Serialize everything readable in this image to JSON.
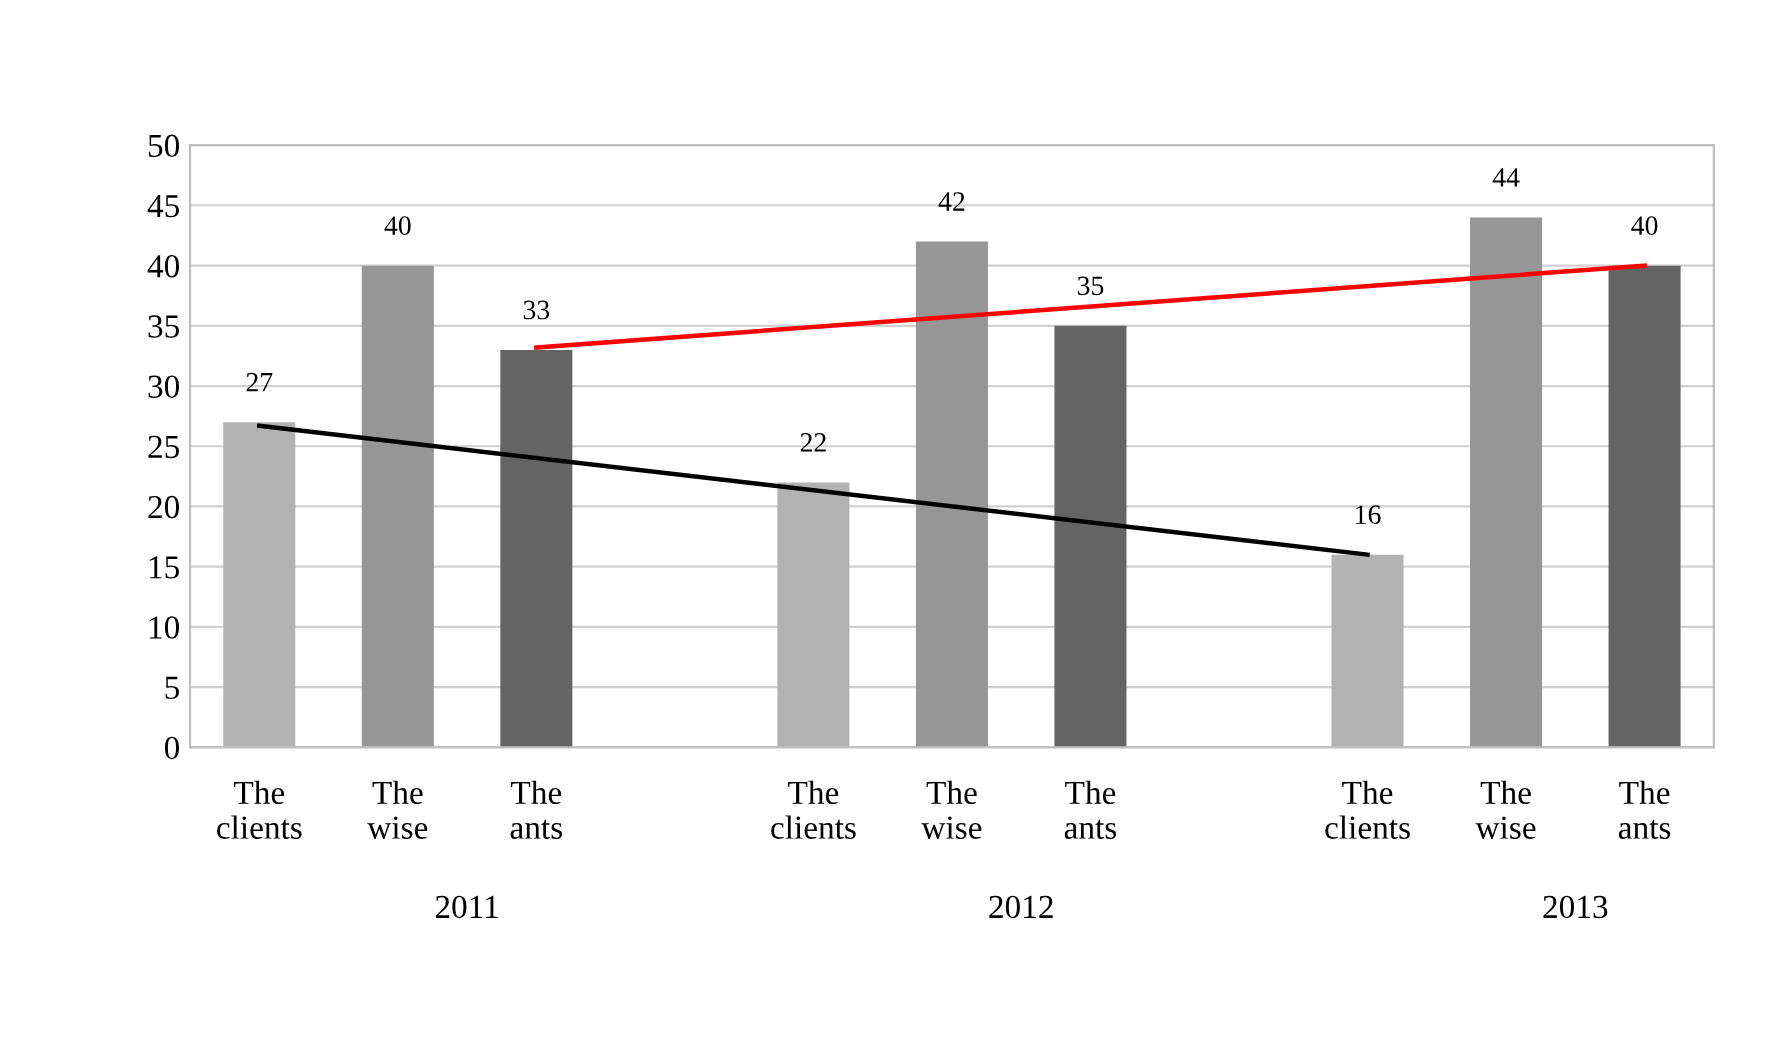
{
  "chart_data": {
    "type": "bar",
    "categories": [
      "The clients",
      "The wise",
      "The ants",
      null,
      "The clients",
      "The wise",
      "The ants",
      null,
      "The clients",
      "The wise",
      "The ants"
    ],
    "values": [
      27,
      40,
      33,
      null,
      22,
      42,
      35,
      null,
      16,
      44,
      40
    ],
    "colors": [
      "#b2b2b2",
      "#969696",
      "#646464",
      null,
      "#b2b2b2",
      "#969696",
      "#646464",
      null,
      "#b2b2b2",
      "#969696",
      "#646464"
    ],
    "value_labels": [
      "27",
      "40",
      "33",
      null,
      "22",
      "42",
      "35",
      null,
      "16",
      "44",
      "40"
    ],
    "series": [
      {
        "type": "line",
        "color": "#000000",
        "values": [
          26.7,
          null,
          null,
          null,
          null,
          null,
          null,
          null,
          16,
          null,
          null
        ]
      },
      {
        "type": "line",
        "color": "#ff0000",
        "values": [
          null,
          null,
          33.2,
          null,
          null,
          null,
          null,
          null,
          null,
          null,
          40
        ]
      }
    ],
    "annotations": [
      "2011",
      "2012",
      "2013"
    ],
    "ylim": [
      0,
      50
    ],
    "yticks": [
      0,
      5,
      10,
      15,
      20,
      25,
      30,
      35,
      40,
      45,
      50
    ],
    "grid": "y"
  }
}
